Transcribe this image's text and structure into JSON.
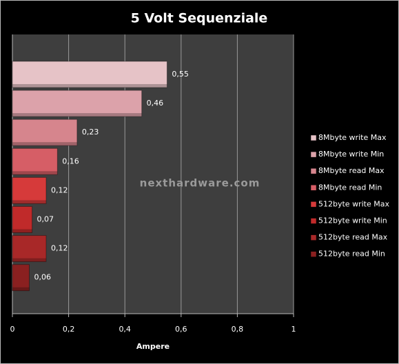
{
  "chart_data": {
    "type": "bar",
    "orientation": "horizontal",
    "title": "5 Volt Sequenziale",
    "x_label": "Ampere",
    "watermark": "nexthardware.com",
    "xlim": [
      0,
      1
    ],
    "xticks": [
      0,
      {
        "value": 0.2,
        "label": "0,2"
      },
      {
        "value": 0.4,
        "label": "0,4"
      },
      {
        "value": 0.6,
        "label": "0,6"
      },
      {
        "value": 0.8,
        "label": "0,8"
      },
      1
    ],
    "grid": true,
    "legend": "right",
    "series": [
      {
        "name": "8Mbyte write  Max",
        "color": "#e6c3c7",
        "values": [
          0.55
        ],
        "value_labels": [
          "0,55"
        ]
      },
      {
        "name": "8Mbyte write  Min",
        "color": "#dca2aa",
        "values": [
          0.46
        ],
        "value_labels": [
          "0,46"
        ]
      },
      {
        "name": "8Mbyte read Max",
        "color": "#d6858d",
        "values": [
          0.23
        ],
        "value_labels": [
          "0,23"
        ]
      },
      {
        "name": "8Mbyte read Min",
        "color": "#d65e66",
        "values": [
          0.16
        ],
        "value_labels": [
          "0,16"
        ]
      },
      {
        "name": "512byte write Max",
        "color": "#d63a3a",
        "values": [
          0.12
        ],
        "value_labels": [
          "0,12"
        ]
      },
      {
        "name": "512byte write Min",
        "color": "#c02a2a",
        "values": [
          0.07
        ],
        "value_labels": [
          "0,07"
        ]
      },
      {
        "name": "512byte read Max",
        "color": "#a82828",
        "values": [
          0.12
        ],
        "value_labels": [
          "0,12"
        ]
      },
      {
        "name": "512byte read Min",
        "color": "#8a2020",
        "values": [
          0.06
        ],
        "value_labels": [
          "0,06"
        ]
      }
    ]
  }
}
